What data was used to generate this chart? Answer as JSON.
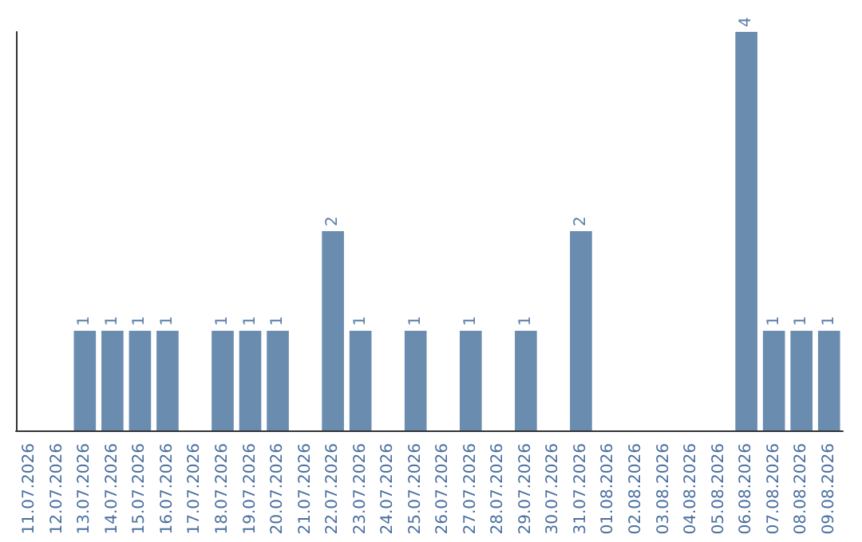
{
  "chart_data": {
    "type": "bar",
    "categories": [
      "11.07.2026",
      "12.07.2026",
      "13.07.2026",
      "14.07.2026",
      "15.07.2026",
      "16.07.2026",
      "17.07.2026",
      "18.07.2026",
      "19.07.2026",
      "20.07.2026",
      "21.07.2026",
      "22.07.2026",
      "23.07.2026",
      "24.07.2026",
      "25.07.2026",
      "26.07.2026",
      "27.07.2026",
      "28.07.2026",
      "29.07.2026",
      "30.07.2026",
      "31.07.2026",
      "01.08.2026",
      "02.08.2026",
      "03.08.2026",
      "04.08.2026",
      "05.08.2026",
      "06.08.2026",
      "07.08.2026",
      "08.08.2026",
      "09.08.2026"
    ],
    "values": [
      0,
      0,
      1,
      1,
      1,
      1,
      0,
      1,
      1,
      1,
      0,
      2,
      1,
      0,
      1,
      0,
      1,
      0,
      1,
      0,
      2,
      0,
      0,
      0,
      0,
      0,
      4,
      1,
      1,
      1
    ],
    "value_labels": [
      null,
      null,
      "1",
      "1",
      "1",
      "1",
      null,
      "1",
      "1",
      "1",
      null,
      "2",
      "1",
      null,
      "1",
      null,
      "1",
      null,
      "1",
      null,
      "2",
      null,
      null,
      null,
      null,
      null,
      "4",
      "1",
      "1",
      "1"
    ],
    "color": "#6a8caf",
    "grid": false
  }
}
